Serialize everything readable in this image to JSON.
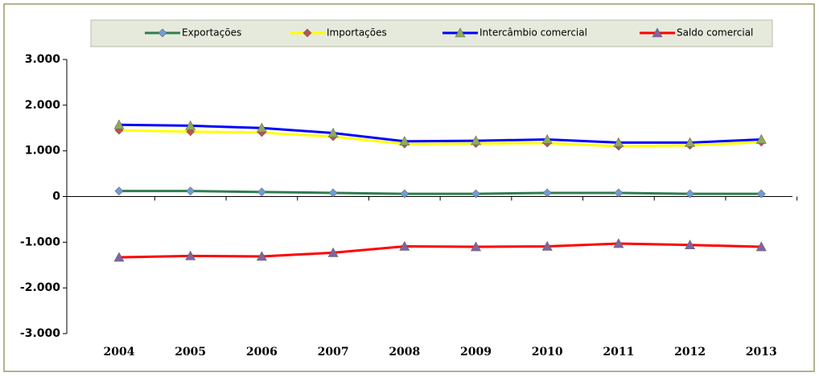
{
  "chart_data": {
    "type": "line",
    "categories": [
      "2004",
      "2005",
      "2006",
      "2007",
      "2008",
      "2009",
      "2010",
      "2011",
      "2012",
      "2013"
    ],
    "series": [
      {
        "name": "Exportações",
        "color": "#2e7d4f",
        "marker": "diamond",
        "marker_color": "#6d9ed8",
        "values": [
          120,
          120,
          100,
          80,
          60,
          60,
          80,
          80,
          60,
          60
        ]
      },
      {
        "name": "Importações",
        "color": "#ffff00",
        "marker": "diamond",
        "marker_color": "#c0504d",
        "values": [
          1450,
          1420,
          1400,
          1310,
          1150,
          1160,
          1170,
          1100,
          1120,
          1190
        ]
      },
      {
        "name": "Intercâmbio comercial",
        "color": "#0000ff",
        "marker": "triangle",
        "marker_color": "#8faa5c",
        "values": [
          1570,
          1550,
          1500,
          1390,
          1210,
          1220,
          1250,
          1180,
          1180,
          1250
        ]
      },
      {
        "name": "Saldo comercial",
        "color": "#ff0000",
        "marker": "triangle",
        "marker_color": "#8064a2",
        "values": [
          -1330,
          -1300,
          -1310,
          -1230,
          -1090,
          -1100,
          -1090,
          -1030,
          -1060,
          -1100
        ]
      }
    ],
    "ylim": [
      -3000,
      3000
    ],
    "yticks": [
      {
        "value": -3000,
        "label": "-3.000"
      },
      {
        "value": -2000,
        "label": "-2.000"
      },
      {
        "value": -1000,
        "label": "-1.000"
      },
      0,
      {
        "value": 1000,
        "label": "1.000"
      },
      {
        "value": 2000,
        "label": "2.000"
      },
      {
        "value": 3000,
        "label": "3.000"
      }
    ],
    "legend": "top"
  }
}
